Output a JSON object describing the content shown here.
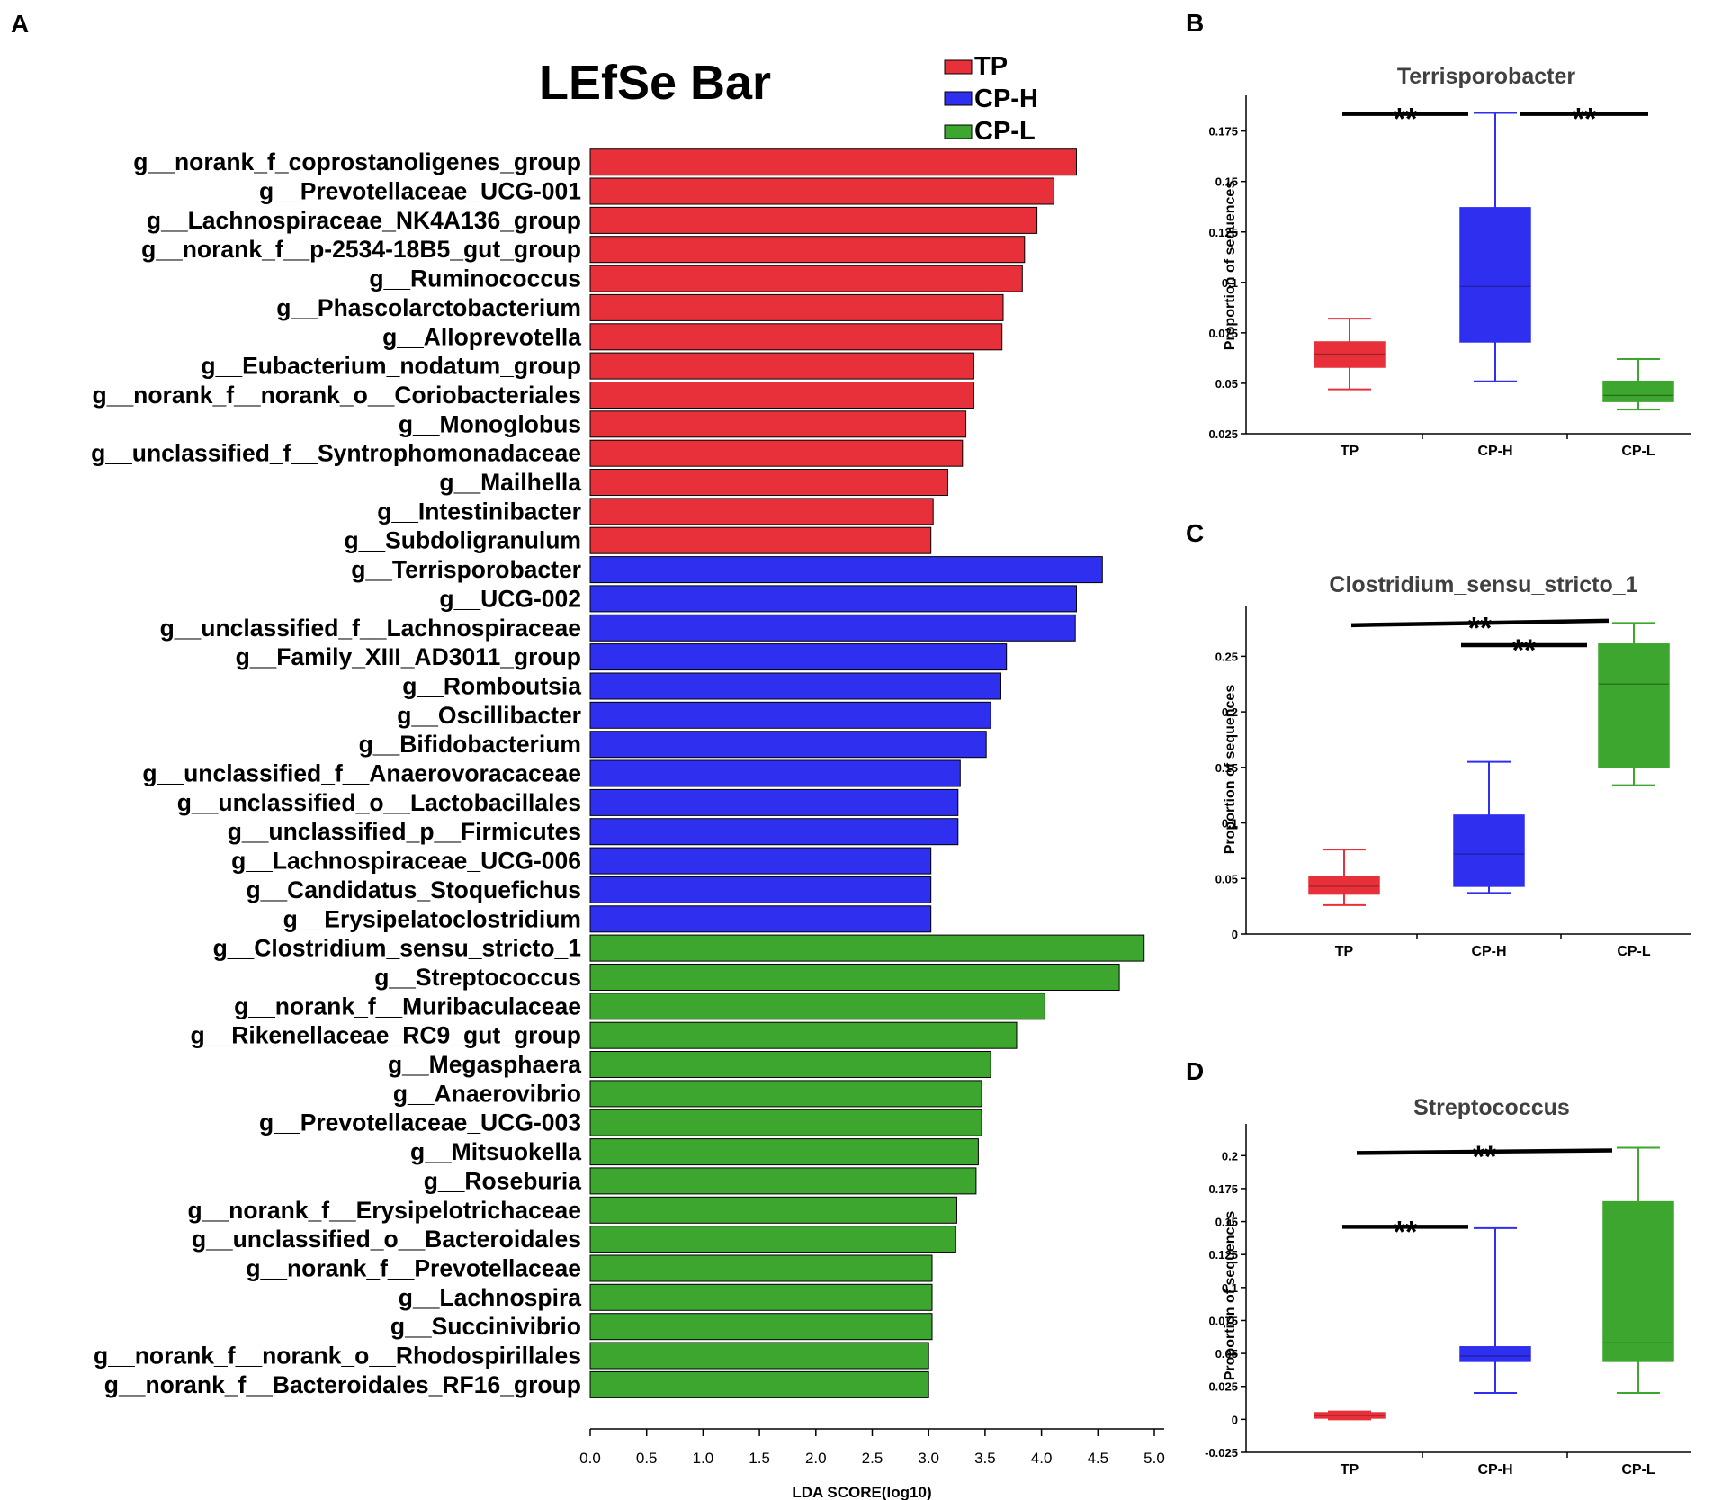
{
  "colors": {
    "TP": "#e8303a",
    "CP-H": "#2f2ff0",
    "CP-L": "#3da62e",
    "line": "#000000",
    "title": "#404040"
  },
  "panels": {
    "A": "A",
    "B": "B",
    "C": "C",
    "D": "D"
  },
  "chart_data": [
    {
      "id": "A",
      "type": "bar",
      "orientation": "horizontal",
      "title": "LEfSe Bar",
      "xlabel": "LDA SCORE(log10)",
      "xlim": [
        0,
        5.0
      ],
      "xticks": [
        "0.0",
        "0.5",
        "1.0",
        "1.5",
        "2.0",
        "2.5",
        "3.0",
        "3.5",
        "4.0",
        "4.5",
        "5.0"
      ],
      "legend": [
        {
          "name": "TP",
          "color": "#e8303a"
        },
        {
          "name": "CP-H",
          "color": "#2f2ff0"
        },
        {
          "name": "CP-L",
          "color": "#3da62e"
        }
      ],
      "bars": [
        {
          "label": "g__norank_f_coprostanoligenes_group",
          "value": 4.31,
          "group": "TP"
        },
        {
          "label": "g__Prevotellaceae_UCG-001",
          "value": 4.11,
          "group": "TP"
        },
        {
          "label": "g__Lachnospiraceae_NK4A136_group",
          "value": 3.96,
          "group": "TP"
        },
        {
          "label": "g__norank_f__p-2534-18B5_gut_group",
          "value": 3.85,
          "group": "TP"
        },
        {
          "label": "g__Ruminococcus",
          "value": 3.83,
          "group": "TP"
        },
        {
          "label": "g__Phascolarctobacterium",
          "value": 3.66,
          "group": "TP"
        },
        {
          "label": "g__Alloprevotella",
          "value": 3.65,
          "group": "TP"
        },
        {
          "label": "g__Eubacterium_nodatum_group",
          "value": 3.4,
          "group": "TP"
        },
        {
          "label": "g__norank_f__norank_o__Coriobacteriales",
          "value": 3.4,
          "group": "TP"
        },
        {
          "label": "g__Monoglobus",
          "value": 3.33,
          "group": "TP"
        },
        {
          "label": "g__unclassified_f__Syntrophomonadaceae",
          "value": 3.3,
          "group": "TP"
        },
        {
          "label": "g__Mailhella",
          "value": 3.17,
          "group": "TP"
        },
        {
          "label": "g__Intestinibacter",
          "value": 3.04,
          "group": "TP"
        },
        {
          "label": "g__Subdoligranulum",
          "value": 3.02,
          "group": "TP"
        },
        {
          "label": "g__Terrisporobacter",
          "value": 4.54,
          "group": "CP-H"
        },
        {
          "label": "g__UCG-002",
          "value": 4.31,
          "group": "CP-H"
        },
        {
          "label": "g__unclassified_f__Lachnospiraceae",
          "value": 4.3,
          "group": "CP-H"
        },
        {
          "label": "g__Family_XIII_AD3011_group",
          "value": 3.69,
          "group": "CP-H"
        },
        {
          "label": "g__Romboutsia",
          "value": 3.64,
          "group": "CP-H"
        },
        {
          "label": "g__Oscillibacter",
          "value": 3.55,
          "group": "CP-H"
        },
        {
          "label": "g__Bifidobacterium",
          "value": 3.51,
          "group": "CP-H"
        },
        {
          "label": "g__unclassified_f__Anaerovoracaceae",
          "value": 3.28,
          "group": "CP-H"
        },
        {
          "label": "g__unclassified_o__Lactobacillales",
          "value": 3.26,
          "group": "CP-H"
        },
        {
          "label": "g__unclassified_p__Firmicutes",
          "value": 3.26,
          "group": "CP-H"
        },
        {
          "label": "g__Lachnospiraceae_UCG-006",
          "value": 3.02,
          "group": "CP-H"
        },
        {
          "label": "g__Candidatus_Stoquefichus",
          "value": 3.02,
          "group": "CP-H"
        },
        {
          "label": "g__Erysipelatoclostridium",
          "value": 3.02,
          "group": "CP-H"
        },
        {
          "label": "g__Clostridium_sensu_stricto_1",
          "value": 4.91,
          "group": "CP-L"
        },
        {
          "label": "g__Streptococcus",
          "value": 4.69,
          "group": "CP-L"
        },
        {
          "label": "g__norank_f__Muribaculaceae",
          "value": 4.03,
          "group": "CP-L"
        },
        {
          "label": "g__Rikenellaceae_RC9_gut_group",
          "value": 3.78,
          "group": "CP-L"
        },
        {
          "label": "g__Megasphaera",
          "value": 3.55,
          "group": "CP-L"
        },
        {
          "label": "g__Anaerovibrio",
          "value": 3.47,
          "group": "CP-L"
        },
        {
          "label": "g__Prevotellaceae_UCG-003",
          "value": 3.47,
          "group": "CP-L"
        },
        {
          "label": "g__Mitsuokella",
          "value": 3.44,
          "group": "CP-L"
        },
        {
          "label": "g__Roseburia",
          "value": 3.42,
          "group": "CP-L"
        },
        {
          "label": "g__norank_f__Erysipelotrichaceae",
          "value": 3.25,
          "group": "CP-L"
        },
        {
          "label": "g__unclassified_o__Bacteroidales",
          "value": 3.24,
          "group": "CP-L"
        },
        {
          "label": "g__norank_f__Prevotellaceae",
          "value": 3.03,
          "group": "CP-L"
        },
        {
          "label": "g__Lachnospira",
          "value": 3.03,
          "group": "CP-L"
        },
        {
          "label": "g__Succinivibrio",
          "value": 3.03,
          "group": "CP-L"
        },
        {
          "label": "g__norank_f__norank_o__Rhodospirillales",
          "value": 3.0,
          "group": "CP-L"
        },
        {
          "label": "g__norank_f__Bacteroidales_RF16_group",
          "value": 3.0,
          "group": "CP-L"
        }
      ]
    },
    {
      "id": "B",
      "type": "box",
      "title": "Terrisporobacter",
      "ylabel": "Proportion of sequences",
      "ylim": [
        0.025,
        0.19
      ],
      "yticks": [
        {
          "v": 0.025,
          "t": "0.025"
        },
        {
          "v": 0.05,
          "t": "0.05"
        },
        {
          "v": 0.075,
          "t": "0.075"
        },
        {
          "v": 0.1,
          "t": "0.1"
        },
        {
          "v": 0.125,
          "t": "0.125"
        },
        {
          "v": 0.15,
          "t": "0.15"
        },
        {
          "v": 0.175,
          "t": "0.175"
        }
      ],
      "groups": [
        {
          "name": "TP",
          "min": 0.047,
          "q1": 0.058,
          "median": 0.0645,
          "q3": 0.0705,
          "max": 0.082
        },
        {
          "name": "CP-H",
          "min": 0.051,
          "q1": 0.0705,
          "median": 0.098,
          "q3": 0.137,
          "max": 0.184
        },
        {
          "name": "CP-L",
          "min": 0.037,
          "q1": 0.041,
          "median": 0.044,
          "q3": 0.051,
          "max": 0.062
        }
      ],
      "significance": [
        {
          "from": 0,
          "to": 1,
          "label": "**",
          "y": 0.1835
        },
        {
          "from": 1,
          "to": 2,
          "label": "**",
          "y": 0.1835
        }
      ]
    },
    {
      "id": "C",
      "type": "box",
      "title": "Clostridium_sensu_stricto_1",
      "ylabel": "Proportion of sequences",
      "ylim": [
        0,
        0.29
      ],
      "yticks": [
        {
          "v": 0,
          "t": "0"
        },
        {
          "v": 0.05,
          "t": "0.05"
        },
        {
          "v": 0.1,
          "t": "0.1"
        },
        {
          "v": 0.15,
          "t": "0.15"
        },
        {
          "v": 0.2,
          "t": "0.2"
        },
        {
          "v": 0.25,
          "t": "0.25"
        }
      ],
      "groups": [
        {
          "name": "TP",
          "min": 0.026,
          "q1": 0.036,
          "median": 0.043,
          "q3": 0.052,
          "max": 0.076
        },
        {
          "name": "CP-H",
          "min": 0.037,
          "q1": 0.043,
          "median": 0.072,
          "q3": 0.107,
          "max": 0.155
        },
        {
          "name": "CP-L",
          "min": 0.134,
          "q1": 0.15,
          "median": 0.225,
          "q3": 0.261,
          "max": 0.28
        }
      ],
      "significance": [
        {
          "from": 0,
          "to": 2,
          "label": "**",
          "y": 0.278,
          "y2": 0.282
        },
        {
          "from": 1,
          "to": 2,
          "label": "**",
          "y": 0.26
        }
      ]
    },
    {
      "id": "D",
      "type": "box",
      "title": "Streptococcus",
      "ylabel": "Proportion of sequences",
      "ylim": [
        -0.025,
        0.22
      ],
      "yticks": [
        {
          "v": -0.025,
          "t": "-0.025"
        },
        {
          "v": 0,
          "t": "0"
        },
        {
          "v": 0.025,
          "t": "0.025"
        },
        {
          "v": 0.05,
          "t": "0.05"
        },
        {
          "v": 0.075,
          "t": "0.075"
        },
        {
          "v": 0.1,
          "t": "0.1"
        },
        {
          "v": 0.125,
          "t": "0.125"
        },
        {
          "v": 0.15,
          "t": "0.15"
        },
        {
          "v": 0.175,
          "t": "0.175"
        },
        {
          "v": 0.2,
          "t": "0.2"
        }
      ],
      "groups": [
        {
          "name": "TP",
          "min": 0.0,
          "q1": 0.001,
          "median": 0.003,
          "q3": 0.005,
          "max": 0.006
        },
        {
          "name": "CP-H",
          "min": 0.02,
          "q1": 0.044,
          "median": 0.048,
          "q3": 0.055,
          "max": 0.145
        },
        {
          "name": "CP-L",
          "min": 0.02,
          "q1": 0.044,
          "median": 0.058,
          "q3": 0.165,
          "max": 0.206
        }
      ],
      "significance": [
        {
          "from": 0,
          "to": 2,
          "label": "**",
          "y": 0.202,
          "y2": 0.204
        },
        {
          "from": 0,
          "to": 1,
          "label": "**",
          "y": 0.146
        }
      ]
    }
  ]
}
